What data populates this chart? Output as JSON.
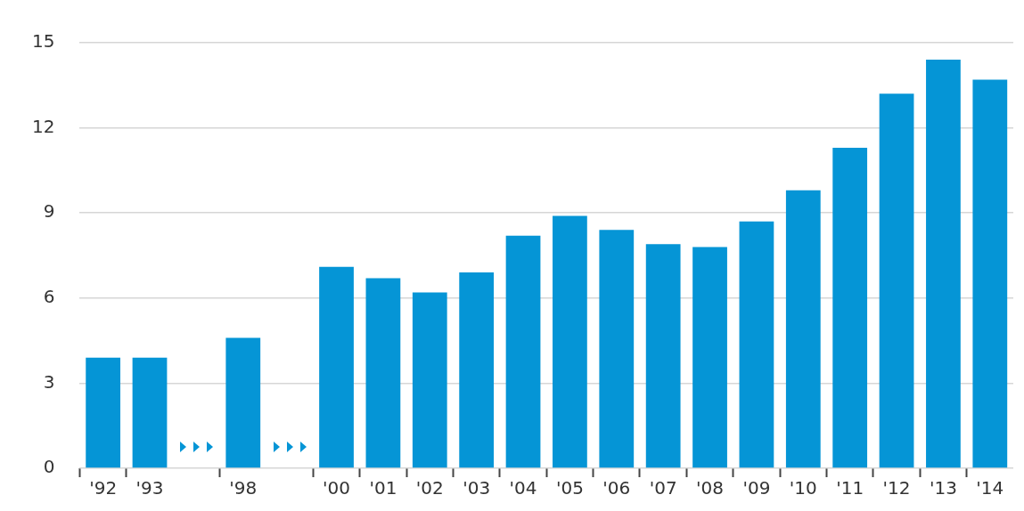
{
  "chart_data": {
    "type": "bar",
    "categories": [
      "'92",
      "'93",
      null,
      "'98",
      null,
      "'00",
      "'01",
      "'02",
      "'03",
      "'04",
      "'05",
      "'06",
      "'07",
      "'08",
      "'09",
      "'10",
      "'11",
      "'12",
      "'13",
      "'14"
    ],
    "values": [
      3.9,
      3.9,
      null,
      4.6,
      null,
      7.1,
      6.7,
      6.2,
      6.9,
      8.2,
      8.9,
      8.4,
      7.9,
      7.8,
      8.7,
      9.8,
      11.3,
      13.2,
      14.4,
      13.7
    ],
    "color": "#0595d6",
    "ylim": [
      0,
      15
    ],
    "yticks": [
      0,
      3,
      6,
      9,
      12,
      15
    ],
    "grid": "y",
    "legend": false
  }
}
